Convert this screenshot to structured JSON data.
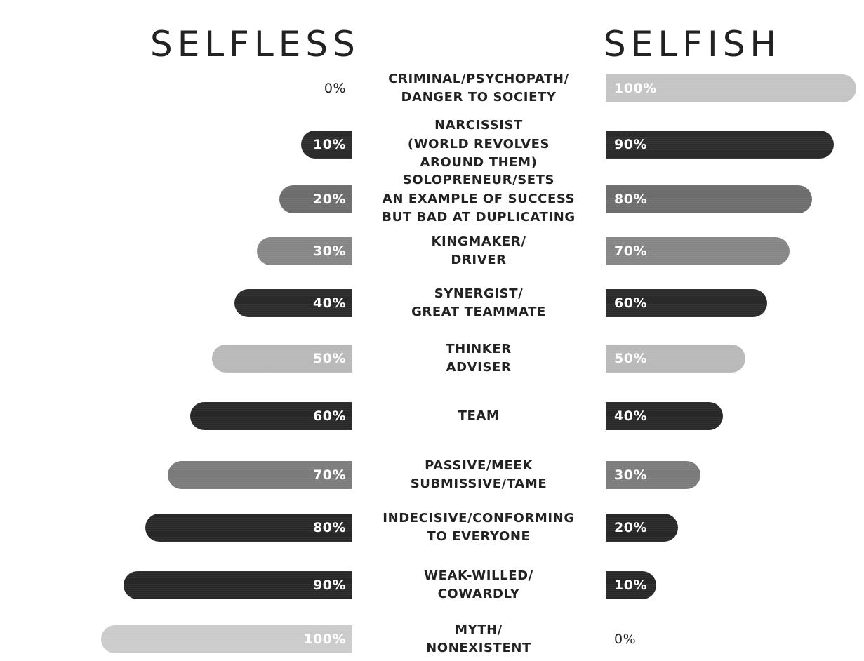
{
  "chart_data": {
    "type": "bar",
    "orientation": "horizontal-diverging",
    "headers": {
      "left": "SELFLESS",
      "right": "SELFISH"
    },
    "categories": [
      [
        "CRIMINAL/PSYCHOPATH/",
        "DANGER TO SOCIETY"
      ],
      [
        "NARCISSIST",
        "(WORLD REVOLVES",
        "AROUND THEM)"
      ],
      [
        "SOLOPRENEUR/SETS",
        "AN EXAMPLE OF SUCCESS",
        "BUT BAD AT DUPLICATING"
      ],
      [
        "KINGMAKER/",
        "DRIVER"
      ],
      [
        "SYNERGIST/",
        "GREAT TEAMMATE"
      ],
      [
        "THINKER",
        "ADVISER"
      ],
      [
        "TEAM"
      ],
      [
        "PASSIVE/MEEK",
        "SUBMISSIVE/TAME"
      ],
      [
        "INDECISIVE/CONFORMING",
        "TO EVERYONE"
      ],
      [
        "WEAK-WILLED/",
        "COWARDLY"
      ],
      [
        "MYTH/",
        "NONEXISTENT"
      ]
    ],
    "series": [
      {
        "name": "SELFLESS",
        "values": [
          0,
          10,
          20,
          30,
          40,
          50,
          60,
          70,
          80,
          90,
          100
        ],
        "labels": [
          "0%",
          "10%",
          "20%",
          "30%",
          "40%",
          "50%",
          "60%",
          "70%",
          "80%",
          "90%",
          "100%"
        ]
      },
      {
        "name": "SELFISH",
        "values": [
          100,
          90,
          80,
          70,
          60,
          50,
          40,
          30,
          20,
          10,
          0
        ],
        "labels": [
          "100%",
          "90%",
          "80%",
          "70%",
          "60%",
          "50%",
          "40%",
          "30%",
          "20%",
          "10%",
          "0%"
        ]
      }
    ],
    "colors": [
      "#c4c4c4",
      "#2b2b2b",
      "#6d6d6d",
      "#868686",
      "#2a2a2a",
      "#b9b9b9",
      "#272727",
      "#7b7b7b",
      "#272727",
      "#272727",
      "#cbcbcb"
    ],
    "xlim": [
      0,
      100
    ],
    "grid": false,
    "legend": "none"
  }
}
